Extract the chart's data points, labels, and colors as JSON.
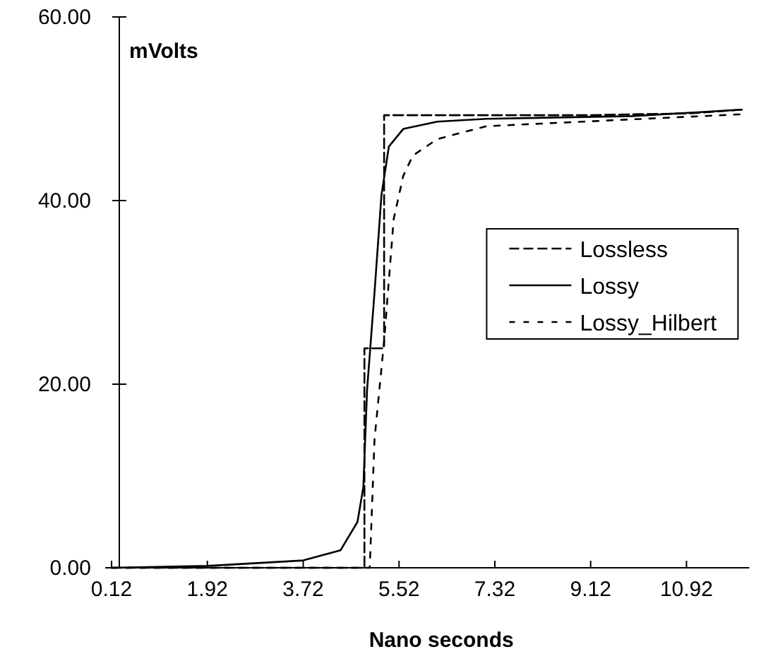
{
  "chart_data": {
    "type": "line",
    "xlabel": "Nano seconds",
    "ylabel": "mVolts",
    "xlim": [
      0,
      12.1
    ],
    "ylim": [
      0,
      60
    ],
    "xticks": [
      0.12,
      1.92,
      3.72,
      5.52,
      7.32,
      9.12,
      10.92
    ],
    "yticks": [
      {
        "value": 0,
        "label": "0.00"
      },
      {
        "value": 20,
        "label": "20.00"
      },
      {
        "value": 40,
        "label": "40.00"
      },
      {
        "value": 60,
        "label": "60.00"
      }
    ],
    "grid": false,
    "legend": "right",
    "marker": "none",
    "series": [
      {
        "name": "Lossless",
        "color": "#000000",
        "line_style": "dashed",
        "x": [
          0.12,
          4.87,
          4.87,
          5.24,
          5.24,
          7,
          9,
          11,
          11.96
        ],
        "values": [
          0,
          0,
          23.9,
          23.9,
          49.3,
          49.3,
          49.3,
          49.5,
          49.9
        ]
      },
      {
        "name": "Lossy",
        "color": "#000000",
        "line_style": "solid",
        "x": [
          0.12,
          1.92,
          3.72,
          4.42,
          4.74,
          4.85,
          4.92,
          5.06,
          5.19,
          5.33,
          5.6,
          6.24,
          7.16,
          9.9,
          11.96
        ],
        "values": [
          0,
          0.2,
          0.8,
          1.9,
          5,
          8.8,
          19.4,
          30,
          40.6,
          45.9,
          47.8,
          48.6,
          48.9,
          49.2,
          49.9
        ]
      },
      {
        "name": "Lossy_Hilbert",
        "color": "#000000",
        "line_style": "dotted",
        "x": [
          0.12,
          4.97,
          5.06,
          5.24,
          5.42,
          5.6,
          5.78,
          6.24,
          7.16,
          8.99,
          11.96
        ],
        "values": [
          0,
          0,
          14,
          24.7,
          38,
          42.7,
          44.9,
          46.7,
          48.1,
          48.6,
          49.4
        ]
      }
    ]
  }
}
